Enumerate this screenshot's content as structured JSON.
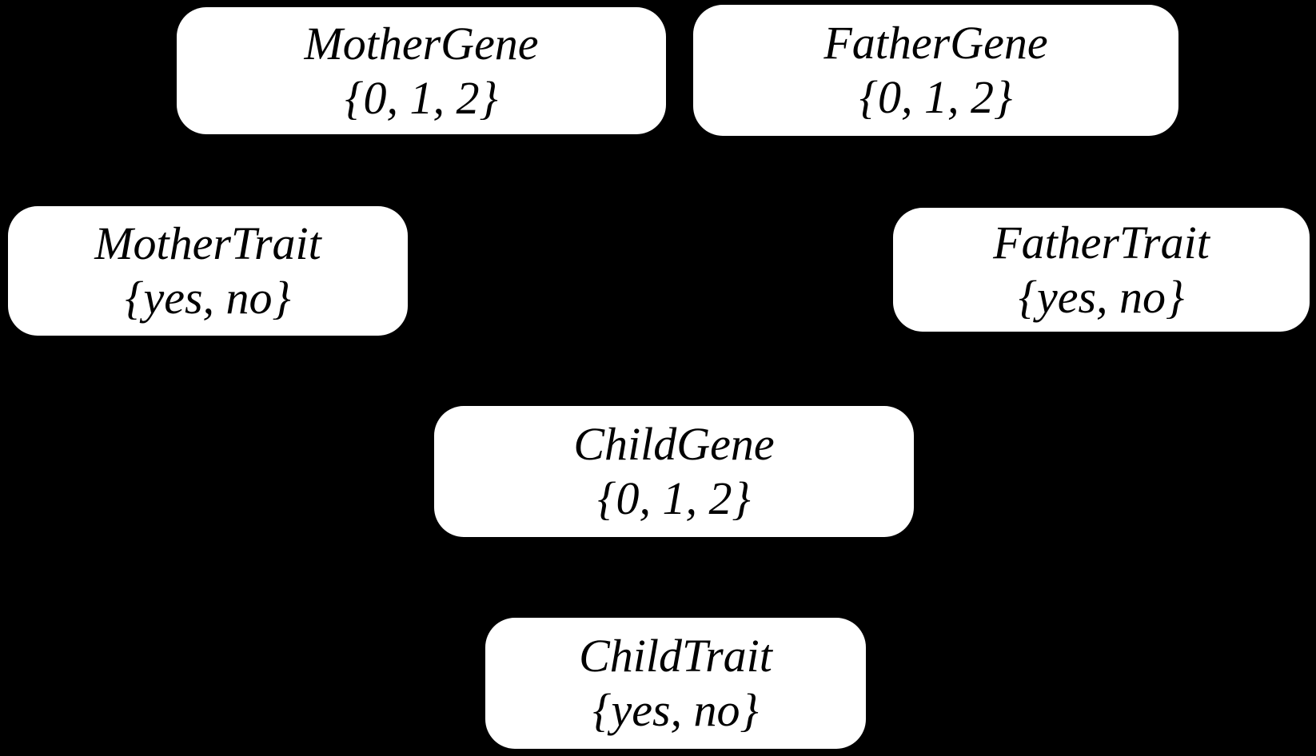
{
  "diagram": {
    "type": "bayesian-network",
    "background_color": "#000000",
    "node_fill_color": "#ffffff",
    "node_text_color": "#000000",
    "nodes": [
      {
        "id": "mother-gene",
        "label": "MotherGene",
        "domain": "{0, 1, 2}"
      },
      {
        "id": "father-gene",
        "label": "FatherGene",
        "domain": "{0, 1, 2}"
      },
      {
        "id": "mother-trait",
        "label": "MotherTrait",
        "domain": "{yes, no}"
      },
      {
        "id": "father-trait",
        "label": "FatherTrait",
        "domain": "{yes, no}"
      },
      {
        "id": "child-gene",
        "label": "ChildGene",
        "domain": "{0, 1, 2}"
      },
      {
        "id": "child-trait",
        "label": "ChildTrait",
        "domain": "{yes, no}"
      }
    ]
  }
}
